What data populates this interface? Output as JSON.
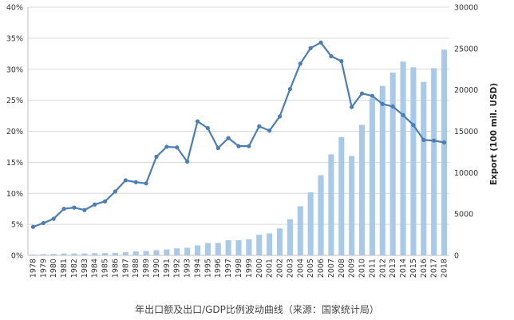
{
  "chart_data": {
    "type": "bar",
    "title": "",
    "caption": "年出口额及出口/GDP比例波动曲线（来源：国家统计局）",
    "xlabel": "",
    "ylabel_left": "",
    "ylabel_right": "Export (100 mil. USD)",
    "categories": [
      "1978",
      "1979",
      "1980",
      "1981",
      "1982",
      "1983",
      "1984",
      "1985",
      "1986",
      "1987",
      "1988",
      "1989",
      "1990",
      "1991",
      "1992",
      "1993",
      "1994",
      "1995",
      "1996",
      "1997",
      "1998",
      "1999",
      "2000",
      "2001",
      "2002",
      "2003",
      "2004",
      "2005",
      "2006",
      "2007",
      "2008",
      "2009",
      "2010",
      "2011",
      "2012",
      "2013",
      "2014",
      "2015",
      "2016",
      "2017",
      "2018"
    ],
    "yticks_left": [
      "0%",
      "5%",
      "10%",
      "15%",
      "20%",
      "25%",
      "30%",
      "35%",
      "40%"
    ],
    "yticks_right": [
      "0",
      "5000",
      "10000",
      "15000",
      "20000",
      "25000",
      "30000"
    ],
    "ylim_left": [
      0,
      40
    ],
    "ylim_right": [
      0,
      30000
    ],
    "grid": true,
    "legend": "none",
    "series": [
      {
        "axis": "right",
        "kind": "bar",
        "color": "#a9c9e8",
        "values": [
          98,
          137,
          181,
          220,
          223,
          222,
          261,
          274,
          309,
          394,
          475,
          525,
          621,
          718,
          849,
          918,
          1210,
          1488,
          1511,
          1828,
          1837,
          1949,
          2492,
          2661,
          3256,
          4382,
          5934,
          7620,
          9690,
          12205,
          14307,
          12016,
          15778,
          18984,
          20487,
          22090,
          23423,
          22735,
          20976,
          22633,
          24874
        ]
      },
      {
        "axis": "left",
        "kind": "line",
        "color": "#4a7eb5",
        "values": [
          4.6,
          5.2,
          5.9,
          7.5,
          7.7,
          7.3,
          8.2,
          8.7,
          10.3,
          12.1,
          11.8,
          11.6,
          15.9,
          17.5,
          17.4,
          15.1,
          21.6,
          20.5,
          17.3,
          18.9,
          17.6,
          17.6,
          20.8,
          20.1,
          22.4,
          26.8,
          30.9,
          33.4,
          34.3,
          32.1,
          31.3,
          23.9,
          26.1,
          25.7,
          24.4,
          24.0,
          22.6,
          21.0,
          18.6,
          18.5,
          18.2
        ]
      }
    ]
  }
}
